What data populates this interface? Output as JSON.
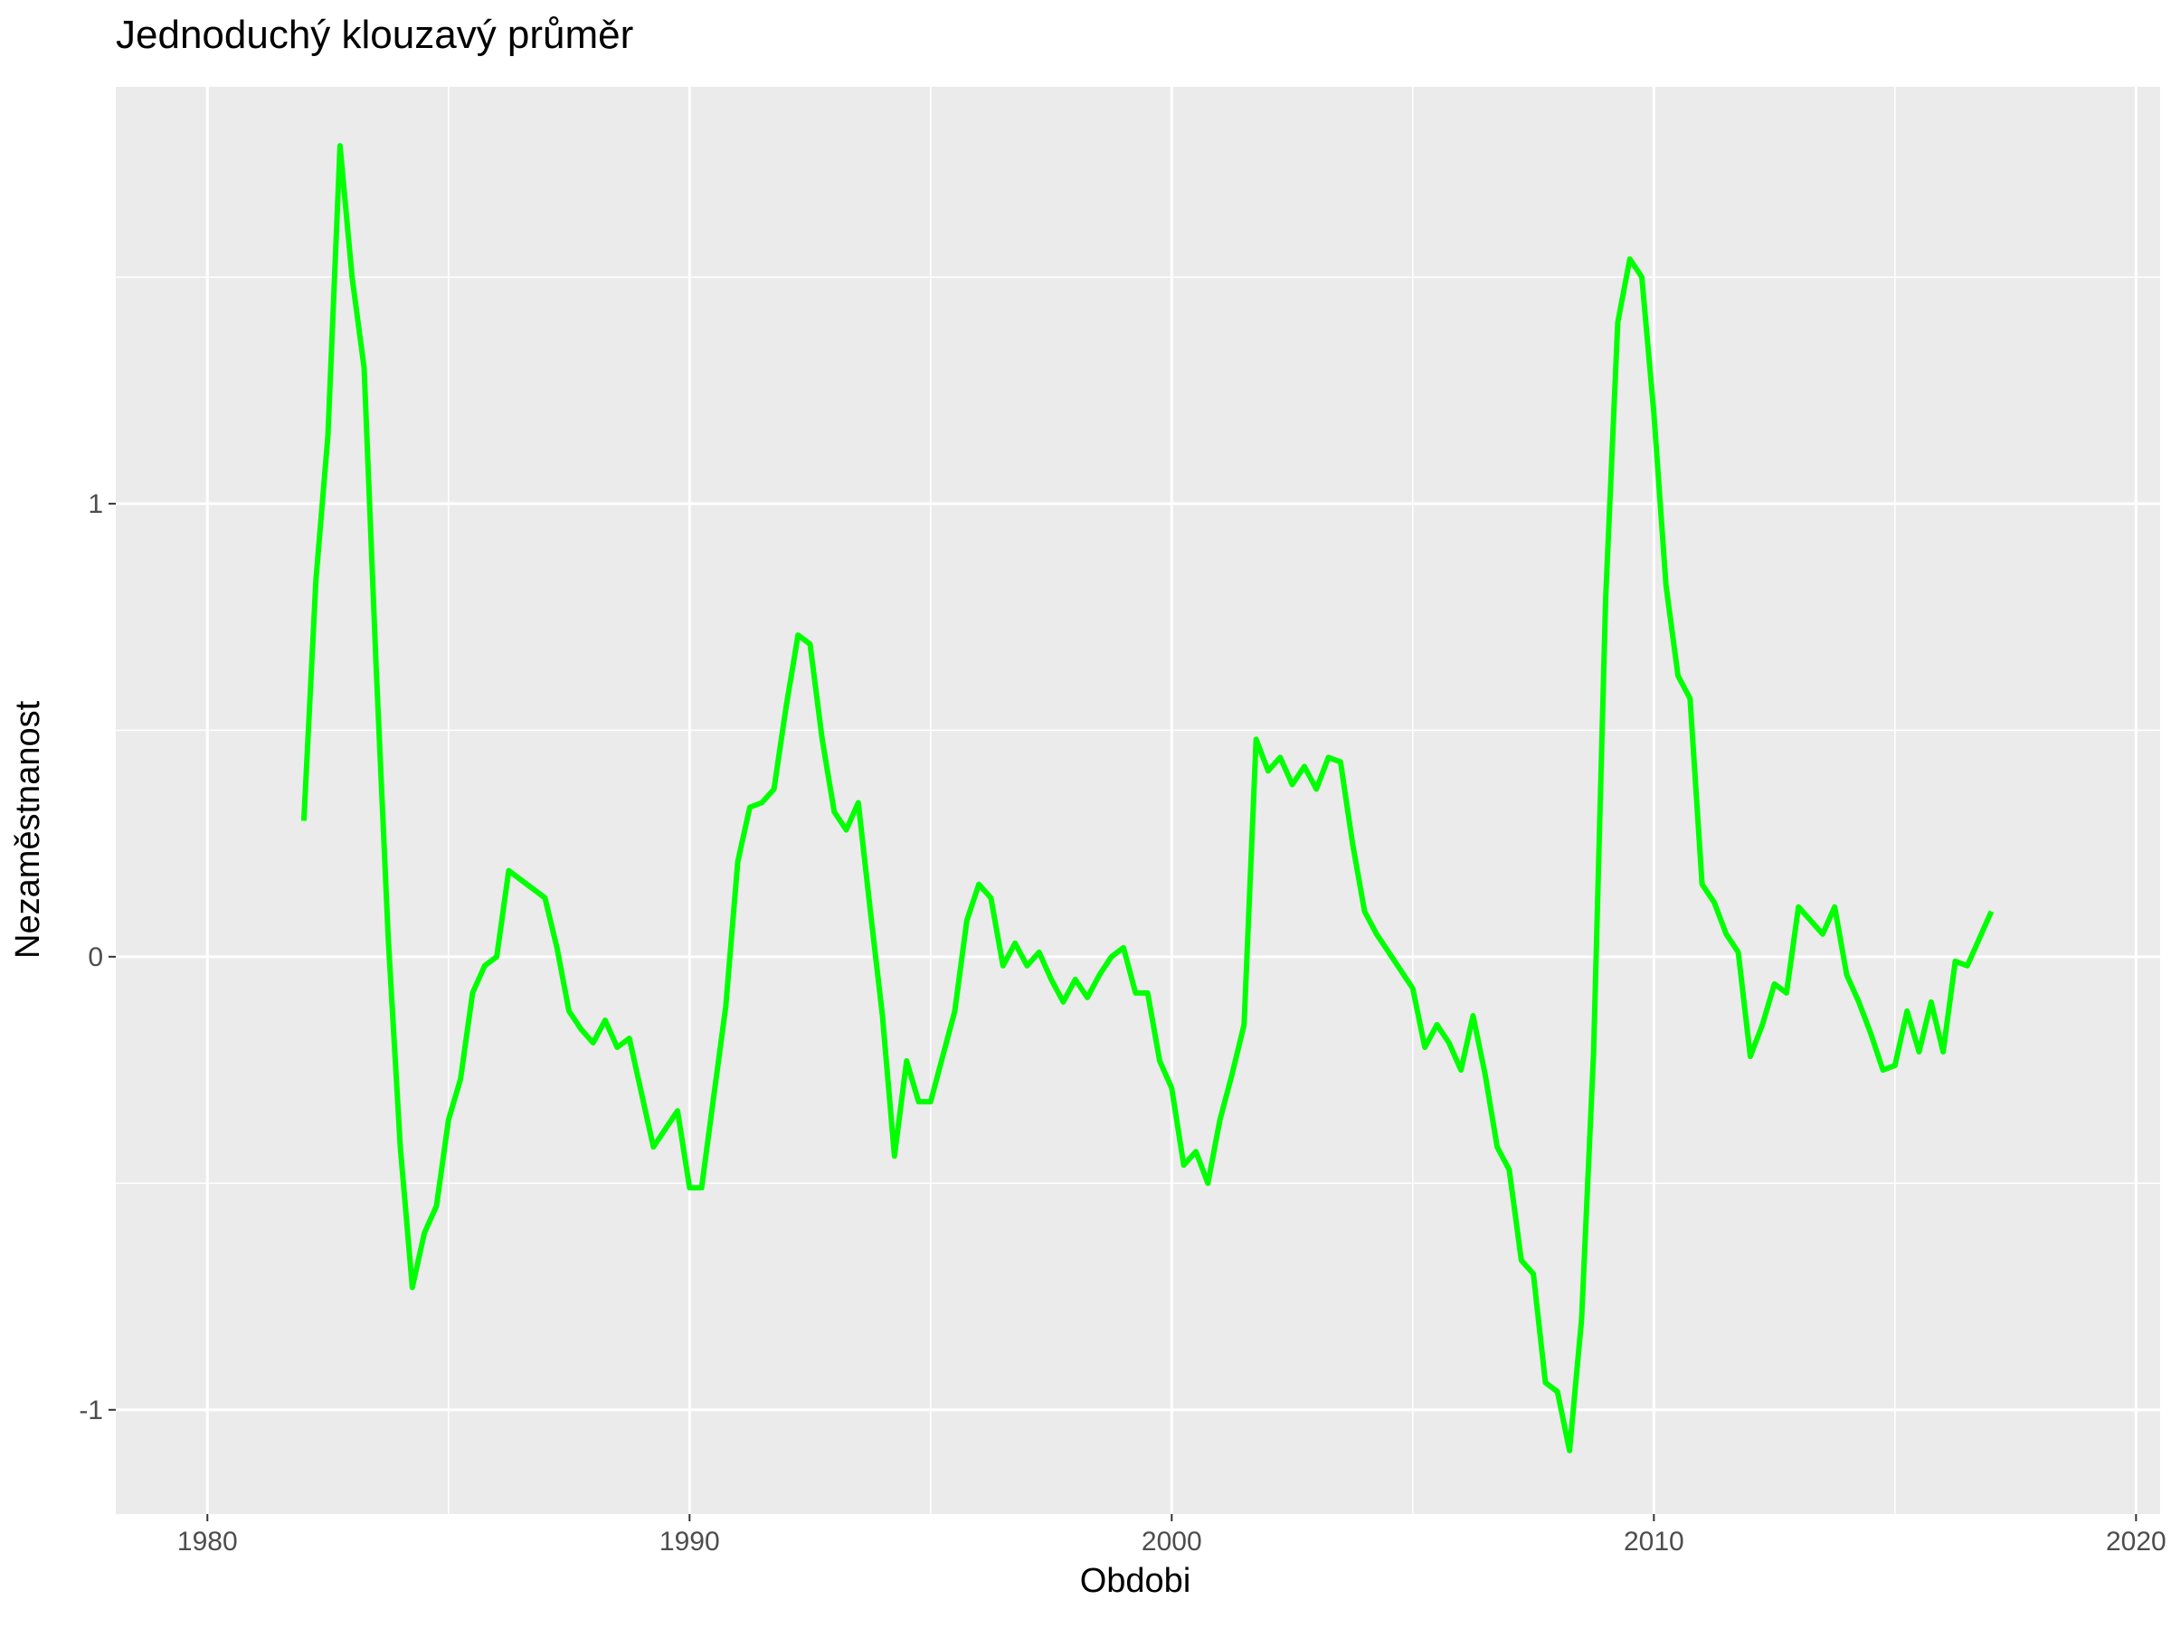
{
  "chart_data": {
    "type": "line",
    "title": "Jednoduchý klouzavý průměr",
    "xlabel": "Obdobi",
    "ylabel": "Nezaměstnanost",
    "xlim": [
      1978.1,
      2020.5
    ],
    "ylim": [
      -1.23,
      1.92
    ],
    "x_ticks": [
      1980,
      1990,
      2000,
      2010,
      2020
    ],
    "y_ticks": [
      -1,
      0,
      1
    ],
    "grid": true,
    "legend": "none",
    "colors": {
      "line": "#00ff00",
      "panel": "#ebebeb",
      "grid": "#ffffff"
    },
    "series": [
      {
        "x": [
          1982.0,
          1982.25,
          1982.5,
          1982.75,
          1983.0,
          1983.25,
          1983.5,
          1983.75,
          1984.0,
          1984.25,
          1984.5,
          1984.75,
          1985.0,
          1985.25,
          1985.5,
          1985.75,
          1986.0,
          1986.25,
          1986.5,
          1986.75,
          1987.0,
          1987.25,
          1987.5,
          1987.75,
          1988.0,
          1988.25,
          1988.5,
          1988.75,
          1989.0,
          1989.25,
          1989.5,
          1989.75,
          1990.0,
          1990.25,
          1990.5,
          1990.75,
          1991.0,
          1991.25,
          1991.5,
          1991.75,
          1992.0,
          1992.25,
          1992.5,
          1992.75,
          1993.0,
          1993.25,
          1993.5,
          1993.75,
          1994.0,
          1994.25,
          1994.5,
          1994.75,
          1995.0,
          1995.25,
          1995.5,
          1995.75,
          1996.0,
          1996.25,
          1996.5,
          1996.75,
          1997.0,
          1997.25,
          1997.5,
          1997.75,
          1998.0,
          1998.25,
          1998.5,
          1998.75,
          1999.0,
          1999.25,
          1999.5,
          1999.75,
          2000.0,
          2000.25,
          2000.5,
          2000.75,
          2001.0,
          2001.25,
          2001.5,
          2001.75,
          2002.0,
          2002.25,
          2002.5,
          2002.75,
          2003.0,
          2003.25,
          2003.5,
          2003.75,
          2004.0,
          2004.25,
          2004.5,
          2004.75,
          2005.0,
          2005.25,
          2005.5,
          2005.75,
          2006.0,
          2006.25,
          2006.5,
          2006.75,
          2007.0,
          2007.25,
          2007.5,
          2007.75,
          2008.0,
          2008.25,
          2008.5,
          2008.75,
          2009.0,
          2009.25,
          2009.5,
          2009.75,
          2010.0,
          2010.25,
          2010.5,
          2010.75,
          2011.0,
          2011.25,
          2011.5,
          2011.75,
          2012.0,
          2012.25,
          2012.5,
          2012.75,
          2013.0,
          2013.25,
          2013.5,
          2013.75,
          2014.0,
          2014.25,
          2014.5,
          2014.75,
          2015.0,
          2015.25,
          2015.5,
          2015.75,
          2016.0,
          2016.25,
          2016.5,
          2016.75,
          2017.0
        ],
        "y": [
          0.3,
          0.83,
          1.15,
          1.79,
          1.5,
          1.3,
          0.64,
          0.04,
          -0.42,
          -0.73,
          -0.61,
          -0.55,
          -0.36,
          -0.27,
          -0.08,
          -0.02,
          0.0,
          0.19,
          0.17,
          0.15,
          0.13,
          0.02,
          -0.12,
          -0.16,
          -0.19,
          -0.14,
          -0.2,
          -0.18,
          -0.3,
          -0.42,
          -0.38,
          -0.34,
          -0.51,
          -0.51,
          -0.31,
          -0.11,
          0.21,
          0.33,
          0.34,
          0.37,
          0.55,
          0.71,
          0.69,
          0.48,
          0.32,
          0.28,
          0.34,
          0.1,
          -0.13,
          -0.44,
          -0.23,
          -0.32,
          -0.32,
          -0.22,
          -0.12,
          0.08,
          0.16,
          0.13,
          -0.02,
          0.03,
          -0.02,
          0.01,
          -0.05,
          -0.1,
          -0.05,
          -0.09,
          -0.04,
          0.0,
          0.02,
          -0.08,
          -0.08,
          -0.23,
          -0.29,
          -0.46,
          -0.43,
          -0.5,
          -0.36,
          -0.26,
          -0.15,
          0.48,
          0.41,
          0.44,
          0.38,
          0.42,
          0.37,
          0.44,
          0.43,
          0.25,
          0.1,
          0.05,
          0.01,
          -0.03,
          -0.07,
          -0.2,
          -0.15,
          -0.19,
          -0.25,
          -0.13,
          -0.26,
          -0.42,
          -0.47,
          -0.67,
          -0.7,
          -0.94,
          -0.96,
          -1.09,
          -0.8,
          -0.21,
          0.79,
          1.4,
          1.54,
          1.5,
          1.2,
          0.82,
          0.62,
          0.57,
          0.16,
          0.12,
          0.05,
          0.01,
          -0.22,
          -0.15,
          -0.06,
          -0.08,
          0.11,
          0.08,
          0.05,
          0.11,
          -0.04,
          -0.1,
          -0.17,
          -0.25,
          -0.24,
          -0.12,
          -0.21,
          -0.1,
          -0.21,
          -0.01,
          -0.02,
          0.04,
          0.1
        ]
      }
    ]
  }
}
